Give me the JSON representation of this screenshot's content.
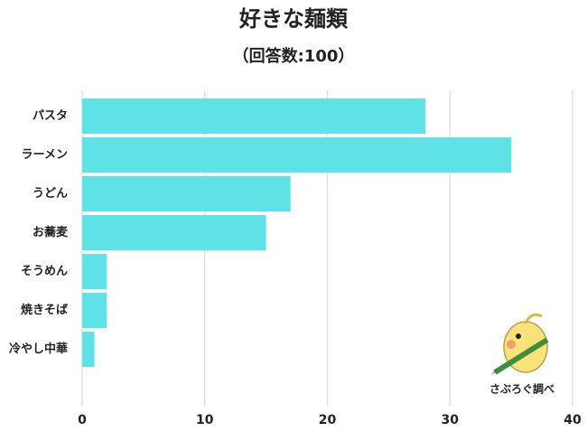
{
  "chart_data": {
    "type": "bar",
    "horizontal": true,
    "title": "好きな麺類",
    "subtitle": "（回答数:100）",
    "categories": [
      "パスタ",
      "ラーメン",
      "うどん",
      "お蕎麦",
      "そうめん",
      "焼きそば",
      "冷やし中華"
    ],
    "values": [
      28,
      35,
      17,
      15,
      2,
      2,
      1
    ],
    "color": "#5ee2e6",
    "xlim": [
      0,
      40
    ],
    "xticks": [
      0,
      10,
      20,
      30,
      40
    ],
    "grid": true,
    "watermark": "さぶろぐ調べ"
  }
}
